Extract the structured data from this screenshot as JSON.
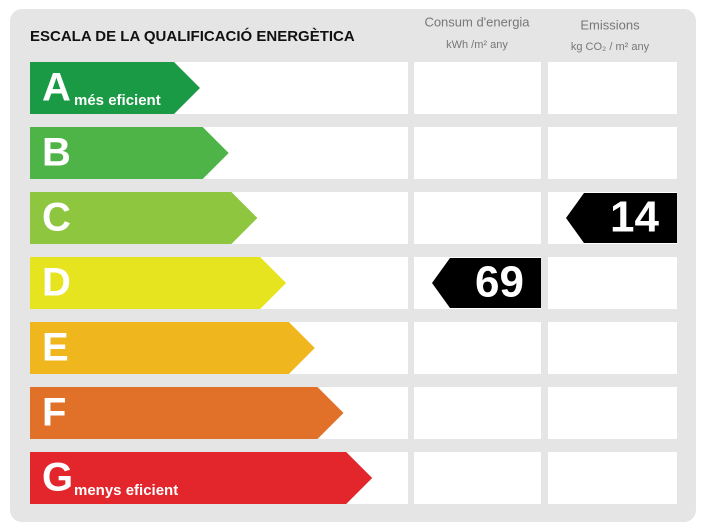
{
  "title": "ESCALA DE LA QUALIFICACIÓ ENERGÈTICA",
  "columns": [
    {
      "title": "Consum d'energia",
      "unit": "kWh /m² any"
    },
    {
      "title": "Emissions",
      "unit": "kg CO₂ / m² any"
    }
  ],
  "classes": [
    {
      "letter": "A",
      "label": "més eficient",
      "color": "#1b9a46"
    },
    {
      "letter": "B",
      "color": "#4fb448"
    },
    {
      "letter": "C",
      "color": "#8fc640"
    },
    {
      "letter": "D",
      "color": "#e6e31f"
    },
    {
      "letter": "E",
      "color": "#efb61e"
    },
    {
      "letter": "F",
      "color": "#e17128"
    },
    {
      "letter": "G",
      "label": "menys eficient",
      "color": "#e2262b"
    }
  ],
  "ratings": [
    {
      "class": "D",
      "value": 69
    },
    {
      "class": "C",
      "value": 14
    }
  ]
}
